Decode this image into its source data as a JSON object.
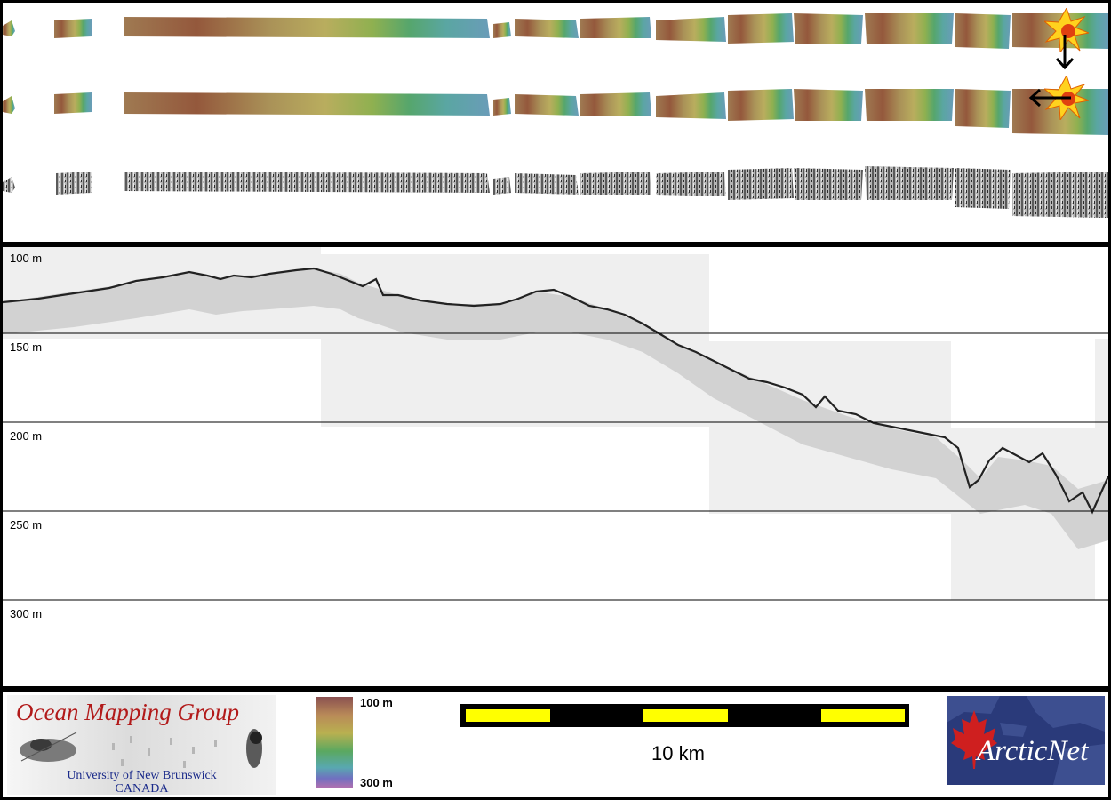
{
  "profile": {
    "depth_labels": [
      "100 m",
      "150 m",
      "200 m",
      "250 m",
      "300 m"
    ]
  },
  "legend": {
    "colorbar_top": "100 m",
    "colorbar_bottom": "300 m",
    "scale_label": "10 km"
  },
  "logos": {
    "omg_title": "Ocean Mapping Group",
    "omg_line1": "University of New Brunswick",
    "omg_line2": "CANADA",
    "arcticnet": "ArcticNet"
  },
  "icons": {
    "sun_top": "sun-illumination-icon",
    "sun_middle": "sun-illumination-icon",
    "arrow_down": "arrow-down-icon",
    "arrow_left": "arrow-left-icon"
  },
  "colors": {
    "scale_yellow": "#ffff00",
    "omg_red": "#b21a1a",
    "arctic_blue": "#2a3a7a"
  }
}
